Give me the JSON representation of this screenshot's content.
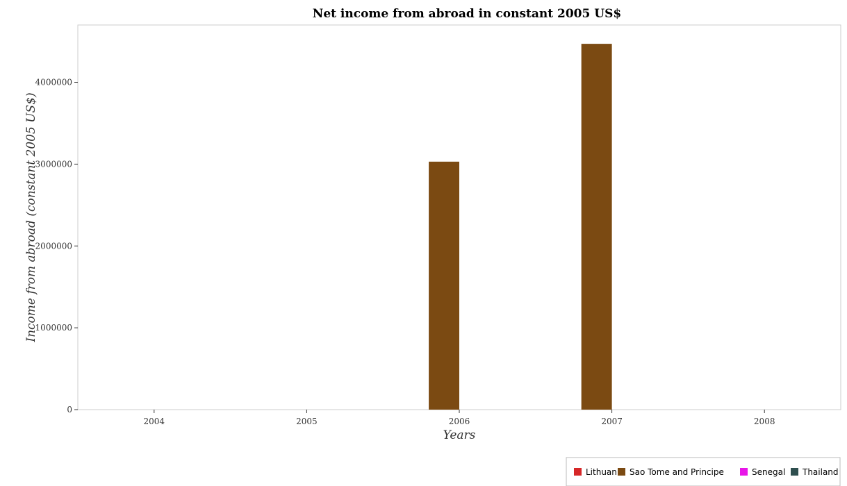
{
  "chart_data": {
    "type": "bar",
    "title": "Net income from abroad in constant 2005 US$",
    "xlabel": "Years",
    "ylabel": "Income from abroad (constant 2005 US$)",
    "categories": [
      "2004",
      "2005",
      "2006",
      "2007",
      "2008"
    ],
    "ylim": [
      0,
      4700000
    ],
    "yticks": [
      0,
      1000000,
      2000000,
      3000000,
      4000000
    ],
    "ytick_labels": [
      "0",
      "1000000",
      "2000000",
      "3000000",
      "4000000"
    ],
    "series": [
      {
        "name": "Lithuania",
        "color": "#d62728",
        "values": [
          0,
          0,
          0,
          0,
          0
        ]
      },
      {
        "name": "Sao Tome and Principe",
        "color": "#7b4a12",
        "values": [
          0,
          0,
          3030000,
          4470000,
          0
        ]
      },
      {
        "name": "Senegal",
        "color": "#e815e8",
        "values": [
          0,
          0,
          0,
          0,
          0
        ]
      },
      {
        "name": "Thailand",
        "color": "#2f4f4f",
        "values": [
          0,
          0,
          0,
          0,
          0
        ]
      }
    ],
    "legend_position": "bottom-right",
    "grid": false
  }
}
